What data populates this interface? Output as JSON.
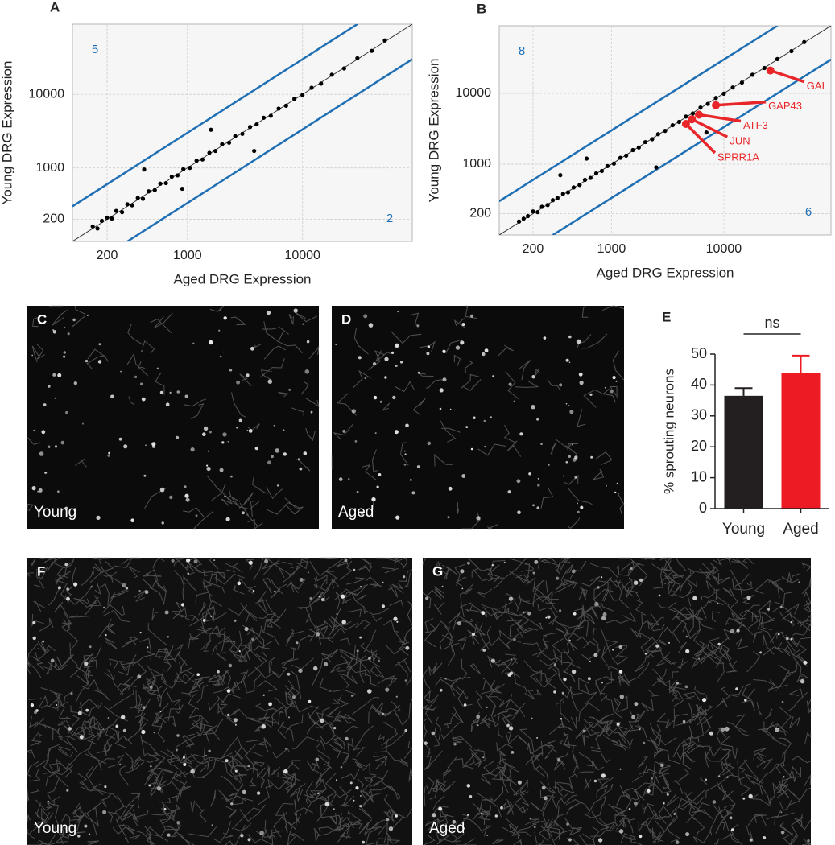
{
  "chart_data": [
    {
      "type": "scatter",
      "panel": "A",
      "x_label": "Aged DRG Expression",
      "y_label": "Young DRG Expression",
      "log_x": true,
      "log_y": true,
      "grid": true,
      "color": "#000000",
      "xlim": [
        100,
        90000
      ],
      "ylim": [
        100,
        90000
      ],
      "xticks": [
        200,
        1000,
        10000
      ],
      "yticks": [
        200,
        1000,
        10000
      ],
      "x": [
        150,
        165,
        180,
        200,
        220,
        240,
        270,
        300,
        330,
        370,
        410,
        460,
        520,
        580,
        650,
        730,
        820,
        920,
        1050,
        1200,
        1350,
        1550,
        1750,
        2000,
        2300,
        2600,
        3000,
        3500,
        4000,
        4600,
        5300,
        6200,
        7200,
        8500,
        10000,
        12000,
        14500,
        18000,
        23000,
        30000,
        40000,
        52000,
        420,
        1600,
        3800,
        900
      ],
      "y": [
        160,
        150,
        190,
        210,
        205,
        260,
        250,
        320,
        310,
        390,
        380,
        480,
        500,
        610,
        620,
        760,
        790,
        960,
        1000,
        1250,
        1300,
        1600,
        1700,
        2100,
        2200,
        2700,
        2900,
        3600,
        3900,
        4800,
        5100,
        6400,
        7000,
        8700,
        9800,
        12300,
        14000,
        18500,
        22500,
        31000,
        39000,
        54000,
        950,
        3300,
        1700,
        520
      ],
      "lines": [
        {
          "color": "#1f6fb5",
          "x": [
            100,
            30000
          ],
          "y": [
            300,
            90000
          ]
        },
        {
          "color": "#1f6fb5",
          "x": [
            300,
            90000
          ],
          "y": [
            100,
            30000
          ]
        }
      ],
      "annotations": [
        {
          "text": "5",
          "corner": "top-left",
          "color": "#1f6fb5"
        },
        {
          "text": "2",
          "corner": "bottom-right",
          "color": "#1f6fb5"
        }
      ]
    },
    {
      "type": "scatter",
      "panel": "B",
      "x_label": "Aged DRG Expression",
      "y_label": "Young DRG Expression",
      "log_x": true,
      "log_y": true,
      "grid": true,
      "color": "#000000",
      "xlim": [
        100,
        90000
      ],
      "ylim": [
        100,
        90000
      ],
      "xticks": [
        200,
        1000,
        10000
      ],
      "yticks": [
        200,
        1000,
        10000
      ],
      "x": [
        150,
        165,
        180,
        200,
        220,
        240,
        270,
        300,
        330,
        370,
        410,
        460,
        520,
        580,
        650,
        730,
        820,
        920,
        1050,
        1200,
        1350,
        1550,
        1750,
        2000,
        2300,
        2600,
        3000,
        3500,
        4000,
        4600,
        5300,
        6200,
        7200,
        8500,
        10000,
        12000,
        14500,
        18000,
        23000,
        30000,
        40000,
        52000,
        600,
        7000,
        2500,
        350
      ],
      "y": [
        155,
        170,
        185,
        215,
        210,
        250,
        265,
        310,
        330,
        380,
        400,
        470,
        510,
        600,
        640,
        740,
        800,
        940,
        1020,
        1230,
        1320,
        1580,
        1720,
        2050,
        2250,
        2650,
        2950,
        3550,
        3950,
        4700,
        5200,
        6300,
        7100,
        8600,
        9900,
        12100,
        14200,
        18300,
        22800,
        30500,
        39500,
        53000,
        1200,
        2800,
        900,
        700
      ],
      "lines": [
        {
          "color": "#1f6fb5",
          "x": [
            100,
            30000
          ],
          "y": [
            300,
            90000
          ]
        },
        {
          "color": "#1f6fb5",
          "x": [
            300,
            90000
          ],
          "y": [
            100,
            30000
          ]
        }
      ],
      "annotations": [
        {
          "text": "8",
          "corner": "top-left",
          "color": "#1f6fb5"
        },
        {
          "text": "6",
          "corner": "bottom-right",
          "color": "#1f6fb5"
        }
      ],
      "highlights": {
        "color": "#e8262a",
        "labels": [
          "GAL",
          "GAP43",
          "ATF3",
          "JUN",
          "SPRR1A"
        ],
        "x": [
          26000,
          8500,
          6000,
          5200,
          4600
        ],
        "y": [
          21000,
          6800,
          5000,
          4300,
          3700
        ]
      }
    },
    {
      "type": "bar",
      "panel": "E",
      "y_label": "% sprouting neurons",
      "annotation": "ns",
      "categories": [
        "Young",
        "Aged"
      ],
      "values": [
        36.5,
        44
      ],
      "errors": [
        2.5,
        5.5
      ],
      "colors": [
        "#231f20",
        "#ed1c24"
      ],
      "ylim": [
        0,
        50
      ],
      "yticks": [
        0,
        10,
        20,
        30,
        40,
        50
      ]
    }
  ],
  "images": [
    {
      "panel": "C",
      "label": "Young"
    },
    {
      "panel": "D",
      "label": "Aged"
    },
    {
      "panel": "F",
      "label": "Young"
    },
    {
      "panel": "G",
      "label": "Aged"
    }
  ]
}
